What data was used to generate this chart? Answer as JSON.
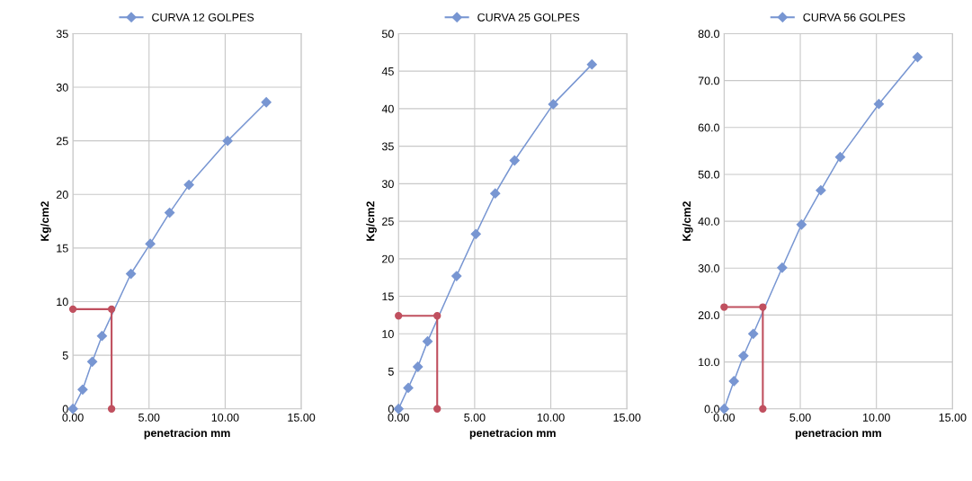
{
  "chart_data": [
    {
      "type": "line",
      "xlabel": "penetracion mm",
      "ylabel": "Kg/cm2",
      "xlim": [
        0,
        15
      ],
      "ylim": [
        0,
        35
      ],
      "xticks": [
        {
          "value": 0,
          "label": "0.00"
        },
        {
          "value": 5,
          "label": "5.00"
        },
        {
          "value": 10,
          "label": "10.00"
        },
        {
          "value": 15,
          "label": "15.00"
        }
      ],
      "yticks": [
        0,
        5,
        10,
        15,
        20,
        25,
        30,
        35
      ],
      "grid": true,
      "legend": "top",
      "marker": "diamond",
      "series": [
        {
          "name": "CURVA 12 GOLPES",
          "color": "#7896d2",
          "x": [
            0,
            0.64,
            1.27,
            1.91,
            3.81,
            5.08,
            6.35,
            7.62,
            10.16,
            12.7
          ],
          "values": [
            0,
            1.8,
            4.4,
            6.8,
            12.6,
            15.4,
            18.3,
            20.9,
            25.0,
            28.6
          ]
        },
        {
          "color": "#c0505f",
          "marker": "circle",
          "x": [
            0,
            2.54,
            2.54
          ],
          "values": [
            9.3,
            9.3,
            0
          ]
        }
      ]
    },
    {
      "type": "line",
      "xlabel": "penetracion mm",
      "ylabel": "Kg/cm2",
      "xlim": [
        0,
        15
      ],
      "ylim": [
        0,
        50
      ],
      "xticks": [
        {
          "value": 0,
          "label": "0.00"
        },
        {
          "value": 5,
          "label": "5.00"
        },
        {
          "value": 10,
          "label": "10.00"
        },
        {
          "value": 15,
          "label": "15.00"
        }
      ],
      "yticks": [
        0,
        5,
        10,
        15,
        20,
        25,
        30,
        35,
        40,
        45,
        50
      ],
      "grid": true,
      "legend": "top",
      "marker": "diamond",
      "series": [
        {
          "name": "CURVA 25 GOLPES",
          "color": "#7896d2",
          "x": [
            0,
            0.64,
            1.27,
            1.91,
            3.81,
            5.08,
            6.35,
            7.62,
            10.16,
            12.7
          ],
          "values": [
            0,
            2.8,
            5.6,
            9.0,
            17.7,
            23.3,
            28.7,
            33.1,
            40.6,
            45.9
          ]
        },
        {
          "color": "#c0505f",
          "marker": "circle",
          "x": [
            0,
            2.54,
            2.54
          ],
          "values": [
            12.4,
            12.4,
            0
          ]
        }
      ]
    },
    {
      "type": "line",
      "xlabel": "penetracion mm",
      "ylabel": "Kg/cm2",
      "xlim": [
        0,
        15
      ],
      "ylim": [
        0,
        80
      ],
      "xticks": [
        {
          "value": 0,
          "label": "0.00"
        },
        {
          "value": 5,
          "label": "5.00"
        },
        {
          "value": 10,
          "label": "10.00"
        },
        {
          "value": 15,
          "label": "15.00"
        }
      ],
      "yticks": [
        {
          "value": 0,
          "label": "0.0"
        },
        {
          "value": 10,
          "label": "10.0"
        },
        {
          "value": 20,
          "label": "20.0"
        },
        {
          "value": 30,
          "label": "30.0"
        },
        {
          "value": 40,
          "label": "40.0"
        },
        {
          "value": 50,
          "label": "50.0"
        },
        {
          "value": 60,
          "label": "60.0"
        },
        {
          "value": 70,
          "label": "70.0"
        },
        {
          "value": 80,
          "label": "80.0"
        }
      ],
      "grid": true,
      "legend": "top",
      "marker": "diamond",
      "series": [
        {
          "name": "CURVA 56 GOLPES",
          "color": "#7896d2",
          "x": [
            0,
            0.64,
            1.27,
            1.91,
            3.81,
            5.08,
            6.35,
            7.62,
            10.16,
            12.7
          ],
          "values": [
            0,
            5.9,
            11.3,
            16.0,
            30.1,
            39.3,
            46.6,
            53.7,
            65.0,
            75.0
          ]
        },
        {
          "color": "#c0505f",
          "marker": "circle",
          "x": [
            0,
            2.54,
            2.54
          ],
          "values": [
            21.7,
            21.7,
            0
          ]
        }
      ]
    }
  ]
}
